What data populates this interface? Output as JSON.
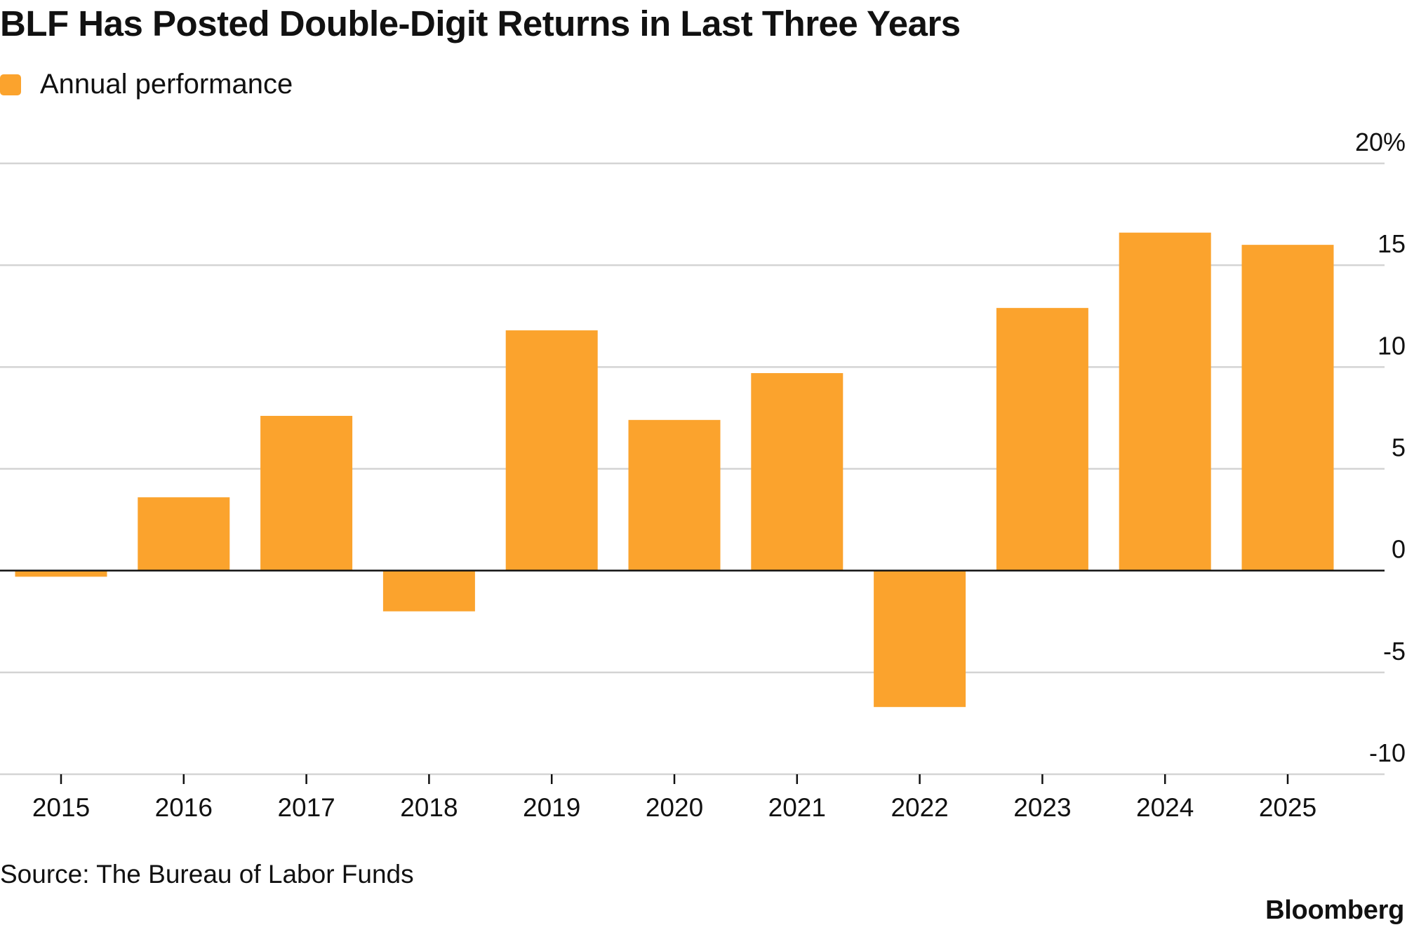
{
  "title": "BLF Has Posted Double-Digit Returns in Last Three Years",
  "legend": {
    "label": "Annual performance",
    "color": "#FBA32D"
  },
  "source": "Source: The Bureau of Labor Funds",
  "brand": "Bloomberg",
  "chart_data": {
    "type": "bar",
    "categories": [
      "2015",
      "2016",
      "2017",
      "2018",
      "2019",
      "2020",
      "2021",
      "2022",
      "2023",
      "2024",
      "2025"
    ],
    "series": [
      {
        "name": "Annual performance",
        "color": "#FBA32D",
        "values": [
          -0.3,
          3.6,
          7.6,
          -2.0,
          11.8,
          7.4,
          9.7,
          -6.7,
          12.9,
          16.6,
          16.0
        ]
      }
    ],
    "ylim": [
      -10,
      20
    ],
    "yticks": [
      20,
      15,
      10,
      5,
      0,
      -5,
      -10
    ],
    "ytick_labels": [
      "20%",
      "15",
      "10",
      "5",
      "0",
      "-5",
      "-10"
    ],
    "y_axis_position": "right",
    "grid": true,
    "legend_position": "top-left"
  }
}
